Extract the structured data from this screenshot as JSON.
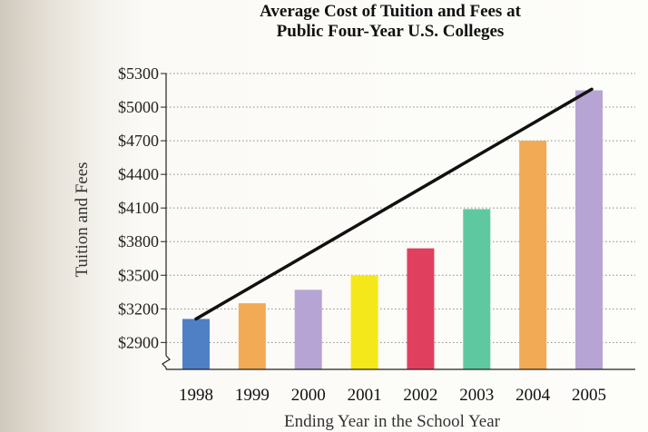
{
  "chart_data": {
    "type": "bar",
    "title": [
      "Average Cost of Tuition and Fees at",
      "Public Four-Year U.S. Colleges"
    ],
    "xlabel": "Ending Year in the School Year",
    "ylabel": "Tuition and Fees",
    "categories": [
      "1998",
      "1999",
      "2000",
      "2001",
      "2002",
      "2003",
      "2004",
      "2005"
    ],
    "values": [
      3110,
      3250,
      3370,
      3500,
      3740,
      4090,
      4700,
      5150
    ],
    "bar_colors": [
      "#4f7fc4",
      "#f3aa55",
      "#b6a4d4",
      "#f5e81a",
      "#e0405e",
      "#5ec9a0",
      "#f3aa55",
      "#b6a4d4"
    ],
    "yticks": [
      2900,
      3200,
      3500,
      3800,
      4100,
      4400,
      4700,
      5000,
      5300
    ],
    "ytick_labels": [
      "$2900",
      "$3200",
      "$3500",
      "$3800",
      "$4100",
      "$4400",
      "$4700",
      "$5000",
      "$5300"
    ],
    "ylim": [
      2660,
      5300
    ],
    "grid": true,
    "axis_break": true,
    "trend_line": {
      "from": [
        "1998",
        3110
      ],
      "to": [
        "2005",
        5160
      ],
      "color": "#111111"
    }
  }
}
